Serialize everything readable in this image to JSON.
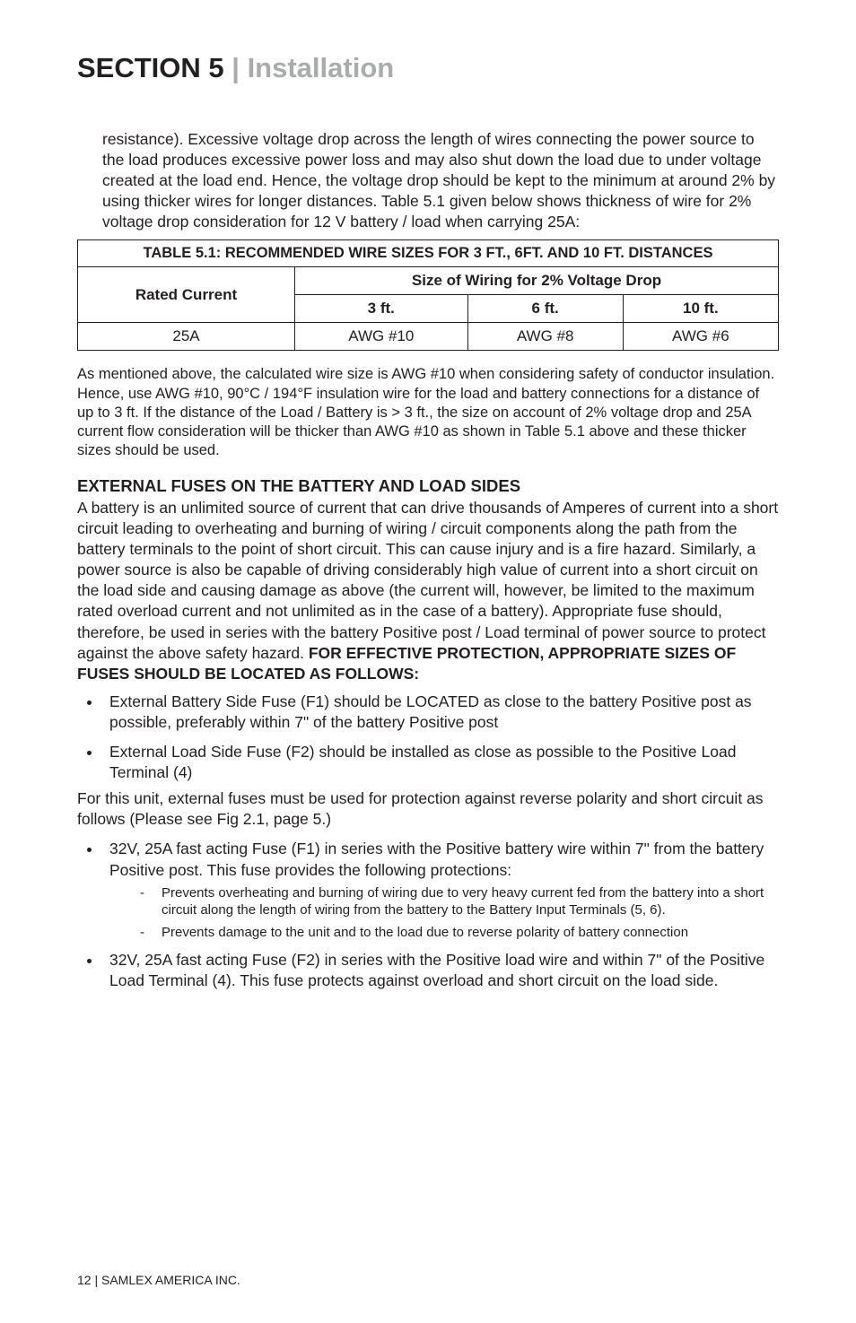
{
  "section": {
    "label": "SECTION 5",
    "divider": "  |  ",
    "title": "Installation"
  },
  "intro": "resistance). Excessive voltage drop across the length of wires connecting the power source to the load produces excessive power loss and may also shut down the load due to under voltage created at the load end. Hence, the voltage drop should be kept to the minimum at around 2% by using thicker wires for longer distances. Table 5.1 given below shows thickness of wire for 2% voltage drop consideration for 12 V battery / load when carrying 25A:",
  "table": {
    "title": "TABLE 5.1: RECOMMENDED WIRE SIZES FOR 3 FT., 6FT. AND 10 FT. DISTANCES",
    "span_hdr": "Size of Wiring for 2% Voltage Drop",
    "col0": "Rated Current",
    "col1": "3 ft.",
    "col2": "6 ft.",
    "col3": "10 ft.",
    "r1c0": "25A",
    "r1c1": "AWG #10",
    "r1c2": "AWG #8",
    "r1c3": "AWG #6"
  },
  "para2": "As mentioned above, the calculated wire size is AWG #10 when considering safety of conductor insulation. Hence, use AWG #10, 90°C / 194°F insulation wire for the load and battery connections for a distance of up to 3 ft. If the distance of the Load / Battery is > 3 ft., the size on account of 2% voltage drop and 25A current flow consideration will be thicker than AWG #10 as shown in Table 5.1 above and these thicker sizes should be used.",
  "subhead": "EXTERNAL FUSES ON THE BATTERY AND LOAD SIDES",
  "para3a": "A battery is an unlimited source of current that can drive thousands of Amperes of current into a short circuit leading to overheating and burning of wiring / circuit components along the path from the battery terminals to the point of short circuit. This can cause injury and is a fire hazard. Similarly, a power source is also be capable of driving considerably high value of current into a short circuit on the load side and causing damage as above (the current will, however, be limited to the maximum rated overload current  and not unlimited as in the case of a battery). Appropriate fuse should, therefore, be used in series with the battery Positive post / Load terminal of power source to protect against the above safety hazard. ",
  "para3b": "FOR EFFECTIVE PROTECTION, APPROPRIATE SIZES OF FUSES SHOULD BE LOCATED AS FOLLOWS:",
  "list1": {
    "i0": "External Battery Side Fuse (F1) should be LOCATED as close to the battery Positive post as possible, preferably within 7\" of the battery Positive post",
    "i1": "External Load Side Fuse (F2) should be installed as close as possible to the Positive Load Terminal (4)"
  },
  "para4": "For this unit, external fuses must be used for protection against reverse polarity and short circuit as follows (Please see Fig 2.1, page 5.)",
  "list2": {
    "i0": "32V, 25A fast acting Fuse (F1) in series with the Positive battery wire within 7\" from the battery Positive post. This fuse provides the following protections:",
    "i0d0": "Prevents overheating and burning of wiring due to very heavy current fed from the battery into a short circuit along the length of wiring from the battery to the Battery Input Terminals (5, 6).",
    "i0d1": "Prevents damage to the unit and to the load due to reverse polarity of battery connection",
    "i1": "32V, 25A fast acting Fuse (F2) in series with the Positive load wire and within 7\" of the Positive Load Terminal (4). This fuse protects against overload and short circuit on the load side."
  },
  "footer": {
    "page": "12",
    "divider": "  |  ",
    "company": "SAMLEX AMERICA INC."
  }
}
